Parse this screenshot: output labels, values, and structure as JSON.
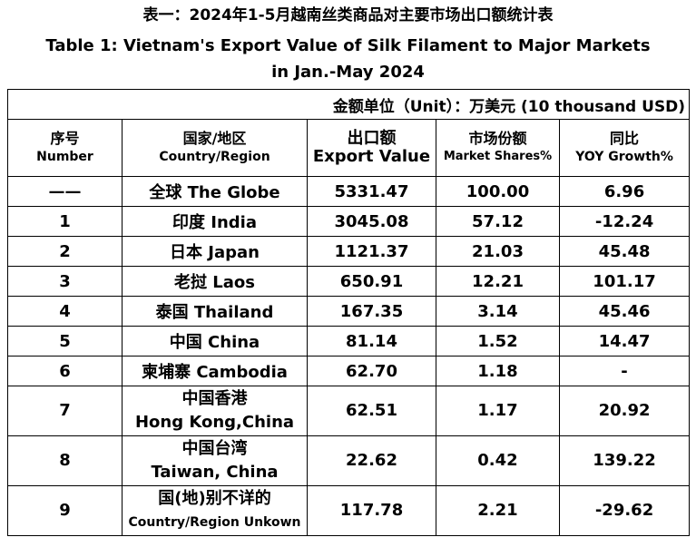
{
  "title_zh": "表一：2024年1-5月越南丝类商品对主要市场出口额统计表",
  "title_en_1": "Table 1: Vietnam's Export Value of Silk Filament to Major Markets",
  "title_en_2": "in Jan.-May 2024",
  "unit": "金额单位（Unit）：万美元 (10 thousand USD)",
  "headers": {
    "number_zh": "序号",
    "number_en": "Number",
    "country_zh": "国家/地区",
    "country_en": "Country/Region",
    "export_zh": "出口额",
    "export_en": "Export Value",
    "share_zh": "市场份额",
    "share_en": "Market Shares%",
    "yoy_zh": "同比",
    "yoy_en": "YOY Growth%"
  },
  "rows": [
    {
      "no": "——",
      "country": "全球 The Globe",
      "export": "5331.47",
      "share": "100.00",
      "yoy": "6.96"
    },
    {
      "no": "1",
      "country": "印度 India",
      "export": "3045.08",
      "share": "57.12",
      "yoy": "-12.24"
    },
    {
      "no": "2",
      "country": "日本 Japan",
      "export": "1121.37",
      "share": "21.03",
      "yoy": "45.48"
    },
    {
      "no": "3",
      "country": "老挝 Laos",
      "export": "650.91",
      "share": "12.21",
      "yoy": "101.17"
    },
    {
      "no": "4",
      "country": "泰国 Thailand",
      "export": "167.35",
      "share": "3.14",
      "yoy": "45.46"
    },
    {
      "no": "5",
      "country": "中国 China",
      "export": "81.14",
      "share": "1.52",
      "yoy": "14.47"
    },
    {
      "no": "6",
      "country": "柬埔寨 Cambodia",
      "export": "62.70",
      "share": "1.18",
      "yoy": "-"
    },
    {
      "no": "7",
      "country_zh": "中国香港",
      "country_en": "Hong Kong,China",
      "export": "62.51",
      "share": "1.17",
      "yoy": "20.92"
    },
    {
      "no": "8",
      "country_zh": "中国台湾",
      "country_en": "Taiwan, China",
      "export": "22.62",
      "share": "0.42",
      "yoy": "139.22"
    },
    {
      "no": "9",
      "country_zh": "国(地)别不详的",
      "country_en": "Country/Region Unkown",
      "export": "117.78",
      "share": "2.21",
      "yoy": "-29.62"
    }
  ]
}
